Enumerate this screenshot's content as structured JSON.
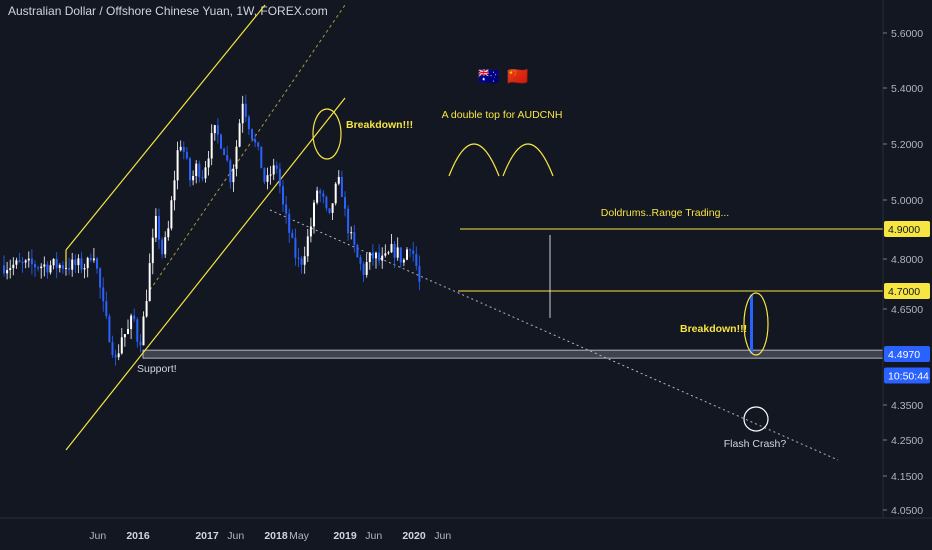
{
  "title": "Australian Dollar / Offshore Chinese Yuan, 1W, FOREX.com",
  "flags": [
    "🇦🇺",
    "🇨🇳"
  ],
  "colors": {
    "background": "#131722",
    "up_candle": "#ffffff",
    "down_candle": "#2962ff",
    "trendline_yellow": "#f7e541",
    "dotted_line": "#b2b5be",
    "support_zone": "#787b86",
    "label_yellow": "#f7e541",
    "label_blue": "#2962ff"
  },
  "price_labels": [
    {
      "text": "4.9000",
      "value": 4.9,
      "style": "yellow"
    },
    {
      "text": "4.7000",
      "value": 4.7,
      "style": "yellow"
    },
    {
      "text": "4.4970",
      "value": 4.497,
      "style": "blue"
    },
    {
      "text": "10:50:44",
      "value": 4.435,
      "style": "blue"
    }
  ],
  "annotations": {
    "breakdown_1": "Breakdown!!!",
    "breakdown_2": "Breakdown!!!",
    "double_top": "A double top for AUDCNH",
    "doldrums": "Doldrums..Range Trading...",
    "support": "Support!",
    "flash_crash": "Flash Crash?"
  },
  "chart_data": {
    "type": "candlestick",
    "title": "Australian Dollar / Offshore Chinese Yuan, 1W, FOREX.com",
    "y_axis": {
      "ticks": [
        "5.6000",
        "5.4000",
        "5.2000",
        "5.0000",
        "4.8000",
        "4.6500",
        "4.3500",
        "4.2500",
        "4.1500",
        "4.0500"
      ],
      "tick_values": [
        5.6,
        5.4,
        5.2,
        5.0,
        4.8,
        4.65,
        4.35,
        4.25,
        4.15,
        4.05
      ],
      "range": [
        4.03,
        5.72
      ],
      "scale": "log"
    },
    "x_axis": {
      "ticks": [
        {
          "label": "Jun",
          "date": "2015-06",
          "year": false
        },
        {
          "label": "2016",
          "date": "2016-01",
          "year": true
        },
        {
          "label": "2017",
          "date": "2017-01",
          "year": true
        },
        {
          "label": "Jun",
          "date": "2017-06",
          "year": false
        },
        {
          "label": "2018",
          "date": "2018-01",
          "year": true
        },
        {
          "label": "May",
          "date": "2018-05",
          "year": false
        },
        {
          "label": "2019",
          "date": "2019-01",
          "year": true
        },
        {
          "label": "Jun",
          "date": "2019-06",
          "year": false
        },
        {
          "label": "2020",
          "date": "2020-01",
          "year": true
        },
        {
          "label": "Jun",
          "date": "2020-06",
          "year": false
        }
      ]
    },
    "price_path": [
      [
        "2015-04",
        4.78
      ],
      [
        "2015-05",
        4.84
      ],
      [
        "2015-06",
        4.73
      ],
      [
        "2015-07",
        4.63
      ],
      [
        "2015-08",
        4.55
      ],
      [
        "2015-09",
        4.47
      ],
      [
        "2015-10",
        4.56
      ],
      [
        "2015-11",
        4.57
      ],
      [
        "2015-12",
        4.63
      ],
      [
        "2016-01",
        4.52
      ],
      [
        "2016-02",
        4.64
      ],
      [
        "2016-03",
        4.8
      ],
      [
        "2016-04",
        4.93
      ],
      [
        "2016-05",
        4.82
      ],
      [
        "2016-06",
        4.88
      ],
      [
        "2016-07",
        5.05
      ],
      [
        "2016-08",
        5.22
      ],
      [
        "2016-09",
        5.16
      ],
      [
        "2016-10",
        5.06
      ],
      [
        "2016-11",
        5.12
      ],
      [
        "2016-12",
        5.09
      ],
      [
        "2017-01",
        5.16
      ],
      [
        "2017-02",
        5.25
      ],
      [
        "2017-03",
        5.22
      ],
      [
        "2017-04",
        5.17
      ],
      [
        "2017-05",
        5.07
      ],
      [
        "2017-06",
        5.2
      ],
      [
        "2017-07",
        5.36
      ],
      [
        "2017-08",
        5.28
      ],
      [
        "2017-09",
        5.21
      ],
      [
        "2017-10",
        5.15
      ],
      [
        "2017-11",
        5.05
      ],
      [
        "2017-12",
        5.1
      ],
      [
        "2018-01",
        5.12
      ],
      [
        "2018-02",
        4.98
      ],
      [
        "2018-03",
        4.9
      ],
      [
        "2018-04",
        4.82
      ],
      [
        "2018-05",
        4.78
      ],
      [
        "2018-06",
        4.84
      ],
      [
        "2018-07",
        4.92
      ],
      [
        "2018-08",
        5.04
      ],
      [
        "2018-09",
        5.0
      ],
      [
        "2018-10",
        4.92
      ],
      [
        "2018-11",
        5.03
      ],
      [
        "2018-12",
        5.07
      ],
      [
        "2019-01",
        4.93
      ],
      [
        "2019-02",
        4.86
      ],
      [
        "2019-03",
        4.8
      ],
      [
        "2019-04",
        4.76
      ],
      [
        "2019-05",
        4.8
      ],
      [
        "2019-06",
        4.81
      ],
      [
        "2019-07",
        4.79
      ],
      [
        "2019-08",
        4.8
      ],
      [
        "2019-09",
        4.83
      ],
      [
        "2019-10",
        4.82
      ],
      [
        "2019-11",
        4.79
      ],
      [
        "2019-12",
        4.86
      ],
      [
        "2020-01",
        4.8
      ],
      [
        "2020-02",
        4.7
      ],
      [
        "2020-03",
        4.497
      ]
    ],
    "horizontal_levels": [
      4.9,
      4.7
    ],
    "support_zone": [
      4.485,
      4.51
    ],
    "last_price": 4.497
  }
}
